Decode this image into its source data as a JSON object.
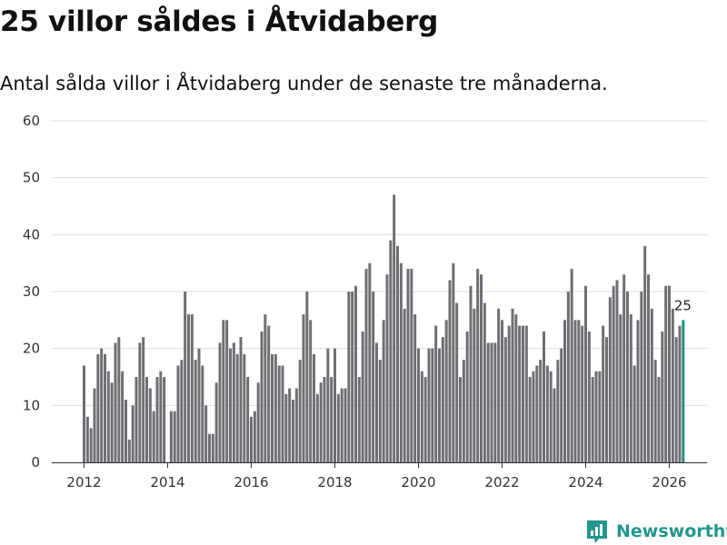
{
  "title": "25 villor såldes i Åtvidaberg",
  "subtitle": "Antal sålda villor i Åtvidaberg under de senaste tre månaderna.",
  "brand": {
    "name": "Newsworthy",
    "color": "#23968e"
  },
  "colors": {
    "bar": "#6f6e75",
    "highlight": "#1f9189",
    "grid": "#dddddd"
  },
  "chart_data": {
    "type": "bar",
    "title": "25 villor såldes i Åtvidaberg",
    "xlabel": "",
    "ylabel": "",
    "ylim": [
      0,
      60
    ],
    "yticks": [
      "0",
      "10",
      "20",
      "30",
      "40",
      "50",
      "60"
    ],
    "xticks": [
      "2012",
      "2014",
      "2016",
      "2018",
      "2020",
      "2022",
      "2024",
      "2026"
    ],
    "x_start": "2012-01",
    "frequency": "monthly",
    "grid": true,
    "last_value_label": "25",
    "values": [
      17,
      8,
      6,
      13,
      19,
      20,
      19,
      16,
      14,
      21,
      22,
      16,
      11,
      4,
      10,
      15,
      21,
      22,
      15,
      13,
      9,
      15,
      16,
      15,
      0,
      9,
      9,
      17,
      18,
      30,
      26,
      26,
      18,
      20,
      17,
      10,
      5,
      5,
      14,
      21,
      25,
      25,
      20,
      21,
      19,
      22,
      19,
      15,
      8,
      9,
      14,
      23,
      26,
      24,
      19,
      19,
      17,
      17,
      12,
      13,
      11,
      13,
      18,
      26,
      30,
      25,
      19,
      12,
      14,
      15,
      20,
      15,
      20,
      12,
      13,
      13,
      30,
      30,
      31,
      15,
      23,
      34,
      35,
      30,
      21,
      18,
      25,
      33,
      39,
      47,
      38,
      35,
      27,
      34,
      34,
      26,
      20,
      16,
      15,
      20,
      20,
      24,
      20,
      22,
      25,
      32,
      35,
      28,
      15,
      18,
      23,
      31,
      27,
      34,
      33,
      28,
      21,
      21,
      21,
      27,
      25,
      22,
      24,
      27,
      26,
      24,
      24,
      24,
      15,
      16,
      17,
      18,
      23,
      17,
      16,
      13,
      18,
      20,
      25,
      30,
      34,
      25,
      25,
      24,
      31,
      23,
      15,
      16,
      16,
      24,
      22,
      29,
      31,
      32,
      26,
      33,
      30,
      26,
      17,
      25,
      30,
      38,
      33,
      27,
      18,
      15,
      23,
      31,
      31,
      27,
      22,
      24,
      25
    ]
  }
}
